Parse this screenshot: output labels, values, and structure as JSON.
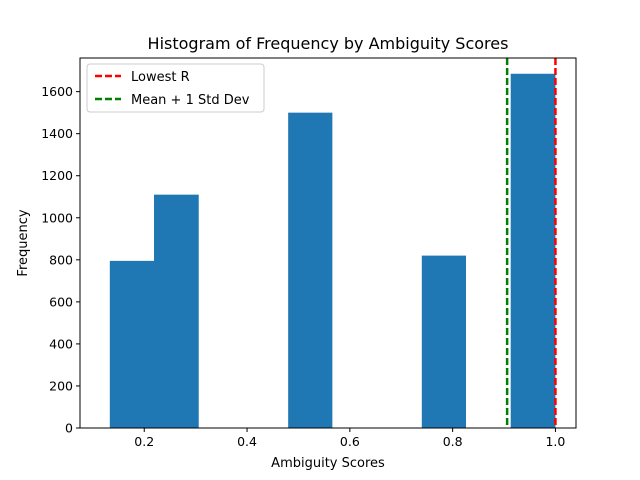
{
  "chart_data": {
    "type": "bar",
    "title": "Histogram of Frequency by Ambiguity Scores",
    "xlabel": "Ambiguity Scores",
    "ylabel": "Frequency",
    "xlim": [
      0.075,
      1.04
    ],
    "ylim": [
      0,
      1760
    ],
    "xticks": [
      0.2,
      0.4,
      0.6,
      0.8,
      1.0
    ],
    "xtick_labels": [
      "0.2",
      "0.4",
      "0.6",
      "0.8",
      "1.0"
    ],
    "yticks": [
      0,
      200,
      400,
      600,
      800,
      1000,
      1200,
      1400,
      1600
    ],
    "ytick_labels": [
      "0",
      "200",
      "400",
      "600",
      "800",
      "1000",
      "1200",
      "1400",
      "1600"
    ],
    "grid": false,
    "bar_color": "#1f77b4",
    "bins": [
      {
        "start": 0.133,
        "end": 0.219,
        "value": 795
      },
      {
        "start": 0.219,
        "end": 0.306,
        "value": 1110
      },
      {
        "start": 0.306,
        "end": 0.393,
        "value": 0
      },
      {
        "start": 0.393,
        "end": 0.48,
        "value": 0
      },
      {
        "start": 0.48,
        "end": 0.566,
        "value": 1500
      },
      {
        "start": 0.566,
        "end": 0.653,
        "value": 0
      },
      {
        "start": 0.653,
        "end": 0.74,
        "value": 0
      },
      {
        "start": 0.74,
        "end": 0.826,
        "value": 820
      },
      {
        "start": 0.826,
        "end": 0.913,
        "value": 0
      },
      {
        "start": 0.913,
        "end": 1.0,
        "value": 1685
      }
    ],
    "reference_lines": [
      {
        "name": "Lowest R",
        "x": 1.0,
        "color": "#ff0000",
        "style": "dashed"
      },
      {
        "name": "Mean + 1 Std Dev",
        "x": 0.906,
        "color": "#008000",
        "style": "dashed"
      }
    ],
    "legend": {
      "placement": "top-left",
      "entries": [
        "Lowest R",
        "Mean + 1 Std Dev"
      ]
    }
  }
}
